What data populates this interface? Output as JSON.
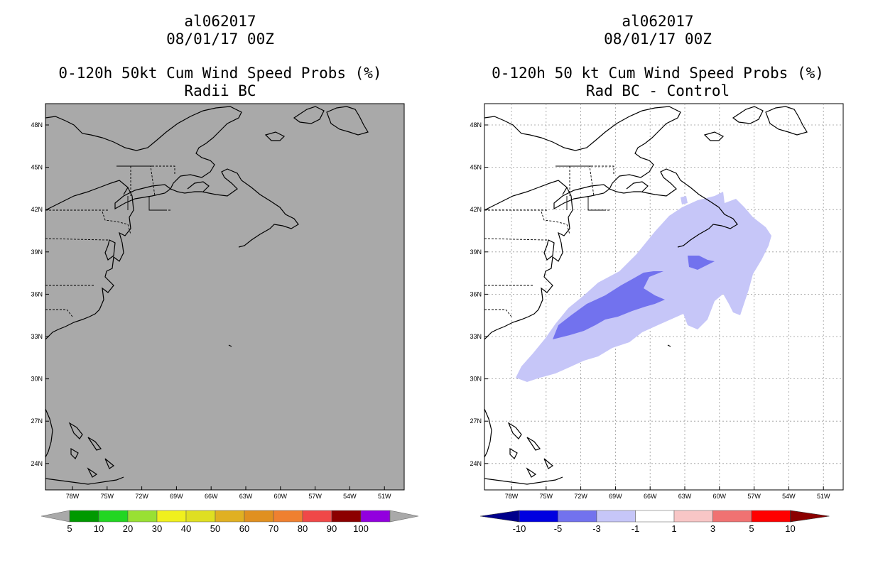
{
  "left_panel": {
    "storm_id": "al062017",
    "datetime": "08/01/17 00Z",
    "product": "0-120h 50kt Cum Wind Speed Probs (%)",
    "subtitle": "Radii BC",
    "background_color": "#a9a9a9",
    "colorbar": {
      "labels": [
        "5",
        "10",
        "20",
        "30",
        "40",
        "50",
        "60",
        "70",
        "80",
        "90",
        "100"
      ],
      "colors": [
        "#009900",
        "#22d622",
        "#99e033",
        "#f0f01e",
        "#dfdf22",
        "#e0b022",
        "#e09020",
        "#ef8030",
        "#f04848",
        "#8c0000",
        "#9200de"
      ],
      "arrow_color": "#a9a9a9"
    }
  },
  "right_panel": {
    "storm_id": "al062017",
    "datetime": "08/01/17 00Z",
    "product": "0-120h 50 kt Cum Wind Speed Probs (%)",
    "subtitle": "Rad BC - Control",
    "background_color": "#ffffff",
    "colorbar": {
      "labels": [
        "-10",
        "-5",
        "-3",
        "-1",
        "1",
        "3",
        "5",
        "10"
      ],
      "colors": [
        "#0000e0",
        "#7272ee",
        "#c6c6f8",
        "#ffffff",
        "#f8c6c6",
        "#f07272",
        "#ff0000"
      ],
      "left_arrow": "#00008b",
      "right_arrow": "#8b0000"
    }
  },
  "axes": {
    "lat_labels": [
      "48N",
      "45N",
      "42N",
      "39N",
      "36N",
      "33N",
      "30N",
      "27N",
      "24N"
    ],
    "lon_labels": [
      "78W",
      "75W",
      "72W",
      "69W",
      "66W",
      "63W",
      "60W",
      "57W",
      "54W",
      "51W"
    ]
  }
}
